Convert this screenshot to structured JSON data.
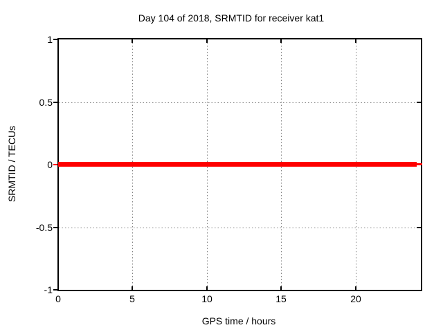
{
  "chart_data": {
    "type": "line",
    "title": "Day 104 of 2018, SRMTID for receiver kat1",
    "xlabel": "GPS time / hours",
    "ylabel": "SRMTID / TECUs",
    "xlim": [
      0,
      24.35
    ],
    "ylim": [
      -1,
      1
    ],
    "x_ticks": [
      0,
      5,
      10,
      15,
      20
    ],
    "y_ticks": [
      1,
      0.5,
      0,
      -0.5,
      -1
    ],
    "grid": "dotted, at all major ticks",
    "legend": "none",
    "series": [
      {
        "name": "SRMTID",
        "x": [
          0,
          24.1
        ],
        "y": [
          0,
          0
        ],
        "note": "constant zero line across the whole day, thick solid"
      }
    ],
    "colors": {
      "line": "#ff0000",
      "grid": "#808080",
      "axis": "#000000",
      "text": "#000000",
      "background": "#ffffff"
    }
  }
}
